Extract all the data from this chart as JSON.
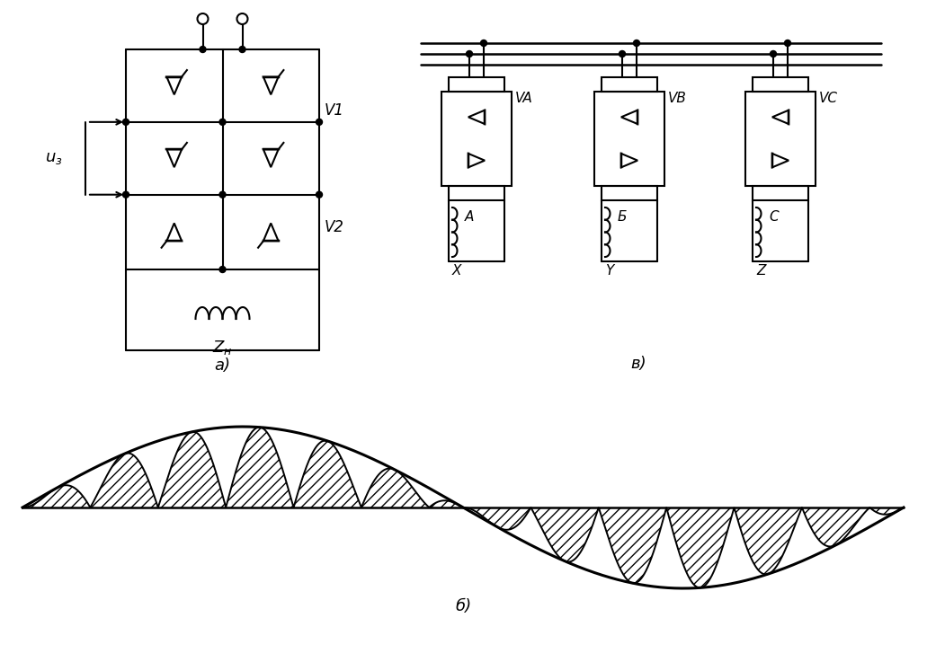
{
  "bg_color": "#ffffff",
  "label_a": "a)",
  "label_b": "в)",
  "label_c": "б)",
  "label_V1": "V1",
  "label_V2": "V2",
  "label_VA": "VA",
  "label_VB": "VB",
  "label_VC": "VC",
  "label_A": "A",
  "label_B": "Б",
  "label_C": "C",
  "label_X": "X",
  "label_Y": "Y",
  "label_Z": "Z"
}
